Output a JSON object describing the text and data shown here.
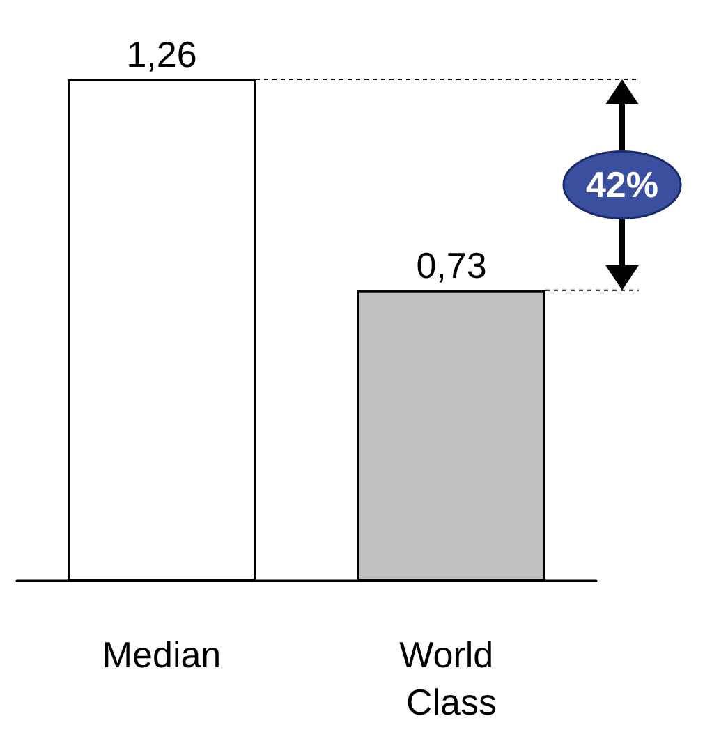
{
  "chart_data": {
    "type": "bar",
    "categories": [
      "Median",
      "World Class"
    ],
    "values": [
      1.26,
      0.73
    ],
    "colors": [
      "#ffffff",
      "#c0c0c0"
    ],
    "value_labels": [
      "1,26",
      "0,73"
    ],
    "annotations": [
      "42%"
    ],
    "tick_labels": "x"
  }
}
